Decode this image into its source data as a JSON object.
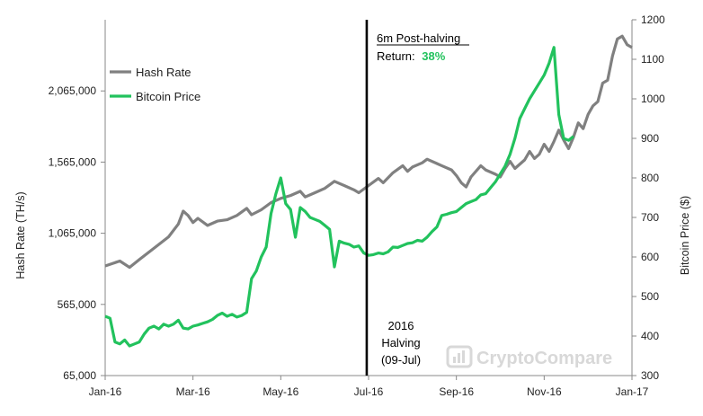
{
  "chart_data": {
    "type": "line",
    "title": "",
    "x": [
      "Jan-16",
      "Mar-16",
      "May-16",
      "Jul-16",
      "Sep-16",
      "Nov-16",
      "Jan-17"
    ],
    "x_tick_labels": [
      "Jan-16",
      "Mar-16",
      "May-16",
      "Jul-16",
      "Sep-16",
      "Nov-16",
      "Jan-17"
    ],
    "xlabel": "",
    "ylabel_left": "Hash Rate (TH/s)",
    "ylabel_right": "Bitcoin Price ($)",
    "ylim_left": [
      65000,
      2565000
    ],
    "ylim_right": [
      300,
      1200
    ],
    "y_left_ticks": [
      "65,000",
      "565,000",
      "1,065,000",
      "1,565,000",
      "2,065,000"
    ],
    "y_left_tick_values": [
      65000,
      565000,
      1065000,
      1565000,
      2065000
    ],
    "y_right_ticks": [
      "300",
      "400",
      "500",
      "600",
      "700",
      "800",
      "900",
      "1000",
      "1100",
      "1200"
    ],
    "y_right_tick_values": [
      300,
      400,
      500,
      600,
      700,
      800,
      900,
      1000,
      1100,
      1200
    ],
    "legend_position": "top-left",
    "series": [
      {
        "name": "Hash Rate",
        "axis": "left",
        "color": "#808080",
        "points": [
          [
            0,
            835000
          ],
          [
            3,
            870000
          ],
          [
            5,
            825000
          ],
          [
            7,
            880000
          ],
          [
            10,
            960000
          ],
          [
            13,
            1040000
          ],
          [
            15,
            1130000
          ],
          [
            16,
            1220000
          ],
          [
            17,
            1190000
          ],
          [
            18,
            1140000
          ],
          [
            19,
            1170000
          ],
          [
            21,
            1120000
          ],
          [
            23,
            1150000
          ],
          [
            25,
            1160000
          ],
          [
            27,
            1190000
          ],
          [
            29,
            1240000
          ],
          [
            30,
            1195000
          ],
          [
            32,
            1230000
          ],
          [
            34,
            1280000
          ],
          [
            36,
            1310000
          ],
          [
            38,
            1330000
          ],
          [
            40,
            1360000
          ],
          [
            41,
            1320000
          ],
          [
            43,
            1350000
          ],
          [
            45,
            1380000
          ],
          [
            47,
            1430000
          ],
          [
            49,
            1400000
          ],
          [
            51,
            1370000
          ],
          [
            52,
            1350000
          ],
          [
            54,
            1400000
          ],
          [
            56,
            1450000
          ],
          [
            57,
            1420000
          ],
          [
            59,
            1490000
          ],
          [
            61,
            1540000
          ],
          [
            62,
            1500000
          ],
          [
            63,
            1530000
          ],
          [
            65,
            1560000
          ],
          [
            66,
            1585000
          ],
          [
            68,
            1555000
          ],
          [
            69,
            1540000
          ],
          [
            71,
            1510000
          ],
          [
            72,
            1470000
          ],
          [
            73,
            1420000
          ],
          [
            74,
            1390000
          ],
          [
            75,
            1460000
          ],
          [
            77,
            1540000
          ],
          [
            78,
            1510000
          ],
          [
            80,
            1480000
          ],
          [
            81,
            1460000
          ],
          [
            82,
            1520000
          ],
          [
            83,
            1570000
          ],
          [
            84,
            1520000
          ],
          [
            86,
            1580000
          ],
          [
            87,
            1640000
          ],
          [
            88,
            1590000
          ],
          [
            89,
            1620000
          ],
          [
            90,
            1690000
          ],
          [
            91,
            1640000
          ],
          [
            92,
            1710000
          ],
          [
            93,
            1790000
          ],
          [
            94,
            1720000
          ],
          [
            95,
            1660000
          ],
          [
            96,
            1740000
          ],
          [
            97,
            1840000
          ],
          [
            98,
            1800000
          ],
          [
            99,
            1900000
          ],
          [
            100,
            1960000
          ],
          [
            101,
            1990000
          ],
          [
            102,
            2120000
          ],
          [
            103,
            2140000
          ],
          [
            104,
            2310000
          ],
          [
            105,
            2430000
          ],
          [
            106,
            2450000
          ],
          [
            107,
            2390000
          ],
          [
            108,
            2370000
          ]
        ]
      },
      {
        "name": "Bitcoin Price",
        "axis": "right",
        "color": "#22c25d",
        "points": [
          [
            0,
            450
          ],
          [
            1,
            445
          ],
          [
            2,
            385
          ],
          [
            3,
            380
          ],
          [
            4,
            390
          ],
          [
            5,
            375
          ],
          [
            6,
            380
          ],
          [
            7,
            385
          ],
          [
            8,
            405
          ],
          [
            9,
            420
          ],
          [
            10,
            425
          ],
          [
            11,
            418
          ],
          [
            12,
            430
          ],
          [
            13,
            425
          ],
          [
            14,
            430
          ],
          [
            15,
            440
          ],
          [
            16,
            420
          ],
          [
            17,
            418
          ],
          [
            18,
            425
          ],
          [
            19,
            428
          ],
          [
            20,
            432
          ],
          [
            21,
            436
          ],
          [
            22,
            442
          ],
          [
            23,
            452
          ],
          [
            24,
            458
          ],
          [
            25,
            450
          ],
          [
            26,
            455
          ],
          [
            27,
            448
          ],
          [
            28,
            452
          ],
          [
            29,
            460
          ],
          [
            30,
            545
          ],
          [
            31,
            565
          ],
          [
            32,
            600
          ],
          [
            33,
            625
          ],
          [
            34,
            710
          ],
          [
            35,
            760
          ],
          [
            36,
            800
          ],
          [
            37,
            735
          ],
          [
            38,
            720
          ],
          [
            39,
            650
          ],
          [
            40,
            725
          ],
          [
            41,
            715
          ],
          [
            42,
            700
          ],
          [
            43,
            695
          ],
          [
            44,
            690
          ],
          [
            45,
            680
          ],
          [
            46,
            670
          ],
          [
            47,
            575
          ],
          [
            48,
            640
          ],
          [
            49,
            635
          ],
          [
            50,
            632
          ],
          [
            51,
            625
          ],
          [
            52,
            628
          ],
          [
            53,
            610
          ],
          [
            54,
            604
          ],
          [
            55,
            606
          ],
          [
            56,
            610
          ],
          [
            57,
            608
          ],
          [
            58,
            613
          ],
          [
            59,
            625
          ],
          [
            60,
            624
          ],
          [
            61,
            629
          ],
          [
            62,
            634
          ],
          [
            63,
            636
          ],
          [
            64,
            642
          ],
          [
            65,
            640
          ],
          [
            66,
            650
          ],
          [
            67,
            664
          ],
          [
            68,
            676
          ],
          [
            69,
            705
          ],
          [
            70,
            708
          ],
          [
            71,
            712
          ],
          [
            72,
            715
          ],
          [
            73,
            725
          ],
          [
            74,
            735
          ],
          [
            75,
            740
          ],
          [
            76,
            745
          ],
          [
            77,
            757
          ],
          [
            78,
            760
          ],
          [
            79,
            775
          ],
          [
            80,
            790
          ],
          [
            81,
            810
          ],
          [
            82,
            830
          ],
          [
            83,
            860
          ],
          [
            84,
            900
          ],
          [
            85,
            950
          ],
          [
            86,
            975
          ],
          [
            87,
            1000
          ],
          [
            88,
            1020
          ],
          [
            89,
            1040
          ],
          [
            90,
            1060
          ],
          [
            91,
            1090
          ],
          [
            92,
            1130
          ],
          [
            93,
            960
          ],
          [
            94,
            900
          ],
          [
            95,
            895
          ],
          [
            96,
            905
          ]
        ]
      }
    ],
    "annotations": {
      "post_halving_title": "6m Post-halving",
      "return_label": "Return:",
      "return_value": "38%",
      "halving_line1": "2016",
      "halving_line2": "Halving",
      "halving_line3": "(09-Jul)",
      "halving_x_fraction": 0.4965
    }
  },
  "colors": {
    "hash_rate": "#808080",
    "bitcoin_price": "#22c25d",
    "return_value": "#22c25d",
    "halving_line": "#000000",
    "axis": "#888888",
    "watermark": "#d8d8d8"
  },
  "watermark": {
    "icon": "cryptocompare-logo-icon",
    "text": "CryptoCompare"
  }
}
